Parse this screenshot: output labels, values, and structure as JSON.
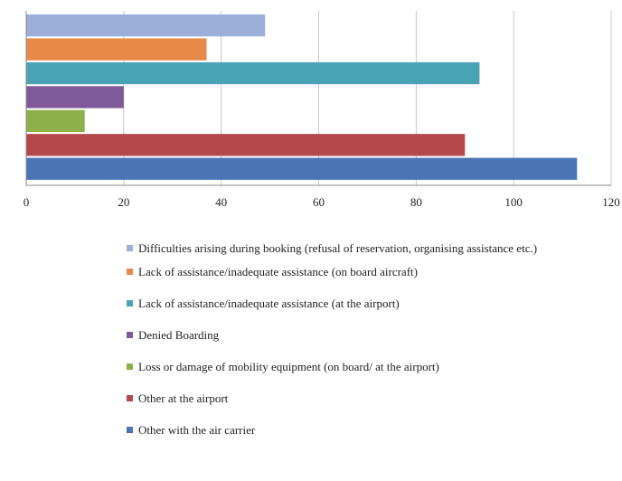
{
  "chart_data": {
    "type": "bar",
    "orientation": "horizontal",
    "xlim": [
      0,
      120
    ],
    "x_ticks": [
      "0",
      "20",
      "40",
      "60",
      "80",
      "100",
      "120"
    ],
    "grid": "vertical",
    "legend_position": "bottom",
    "series": [
      {
        "name": "Difficulties arising during booking (refusal of reservation, organising assistance etc.)",
        "value": 49,
        "color": "#9BAED9"
      },
      {
        "name": "Lack of assistance/inadequate assistance (on board aircraft)",
        "value": 37,
        "color": "#E8894A"
      },
      {
        "name": "Lack of assistance/inadequate assistance (at the airport)",
        "value": 93,
        "color": "#4AA3B5"
      },
      {
        "name": "Denied Boarding",
        "value": 20,
        "color": "#7E5A9B"
      },
      {
        "name": "Loss or damage of mobility equipment (on board/ at the airport)",
        "value": 12,
        "color": "#8DB04A"
      },
      {
        "name": "Other  at the airport",
        "value": 90,
        "color": "#B5484A"
      },
      {
        "name": "Other with the air carrier",
        "value": 113,
        "color": "#4A74B5"
      }
    ]
  }
}
